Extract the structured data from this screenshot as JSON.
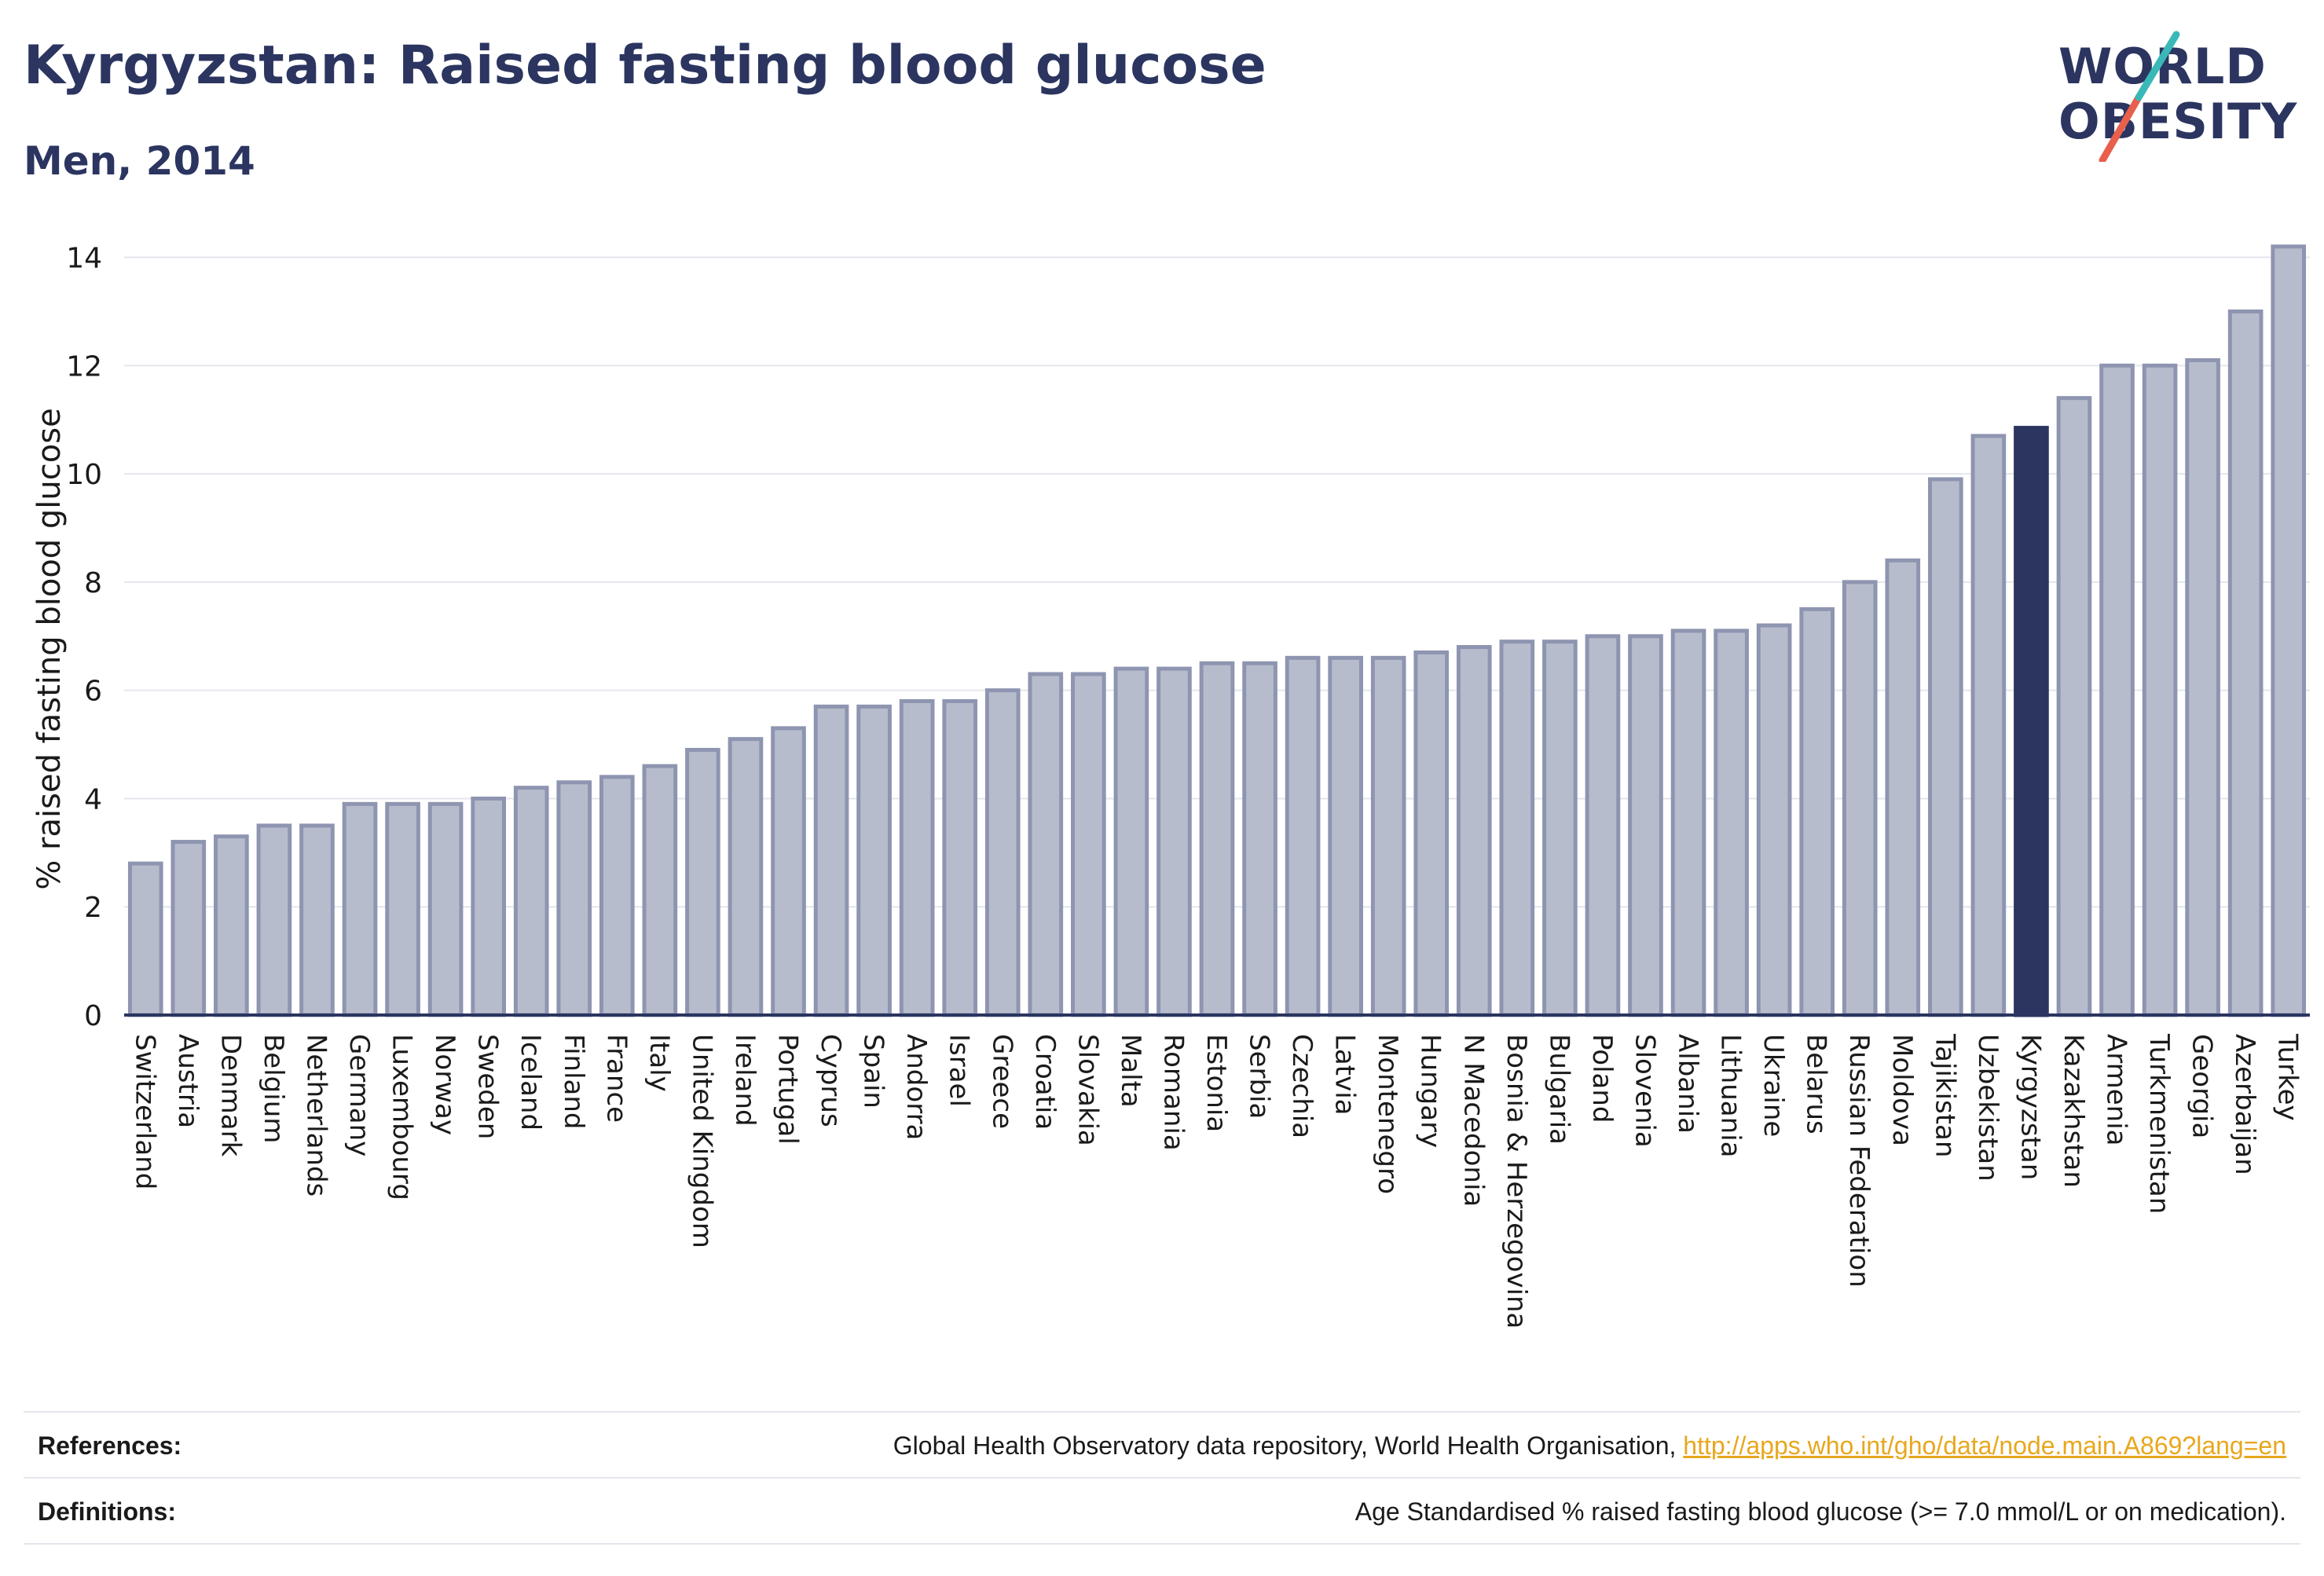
{
  "header": {
    "title": "Kyrgyzstan: Raised fasting blood glucose",
    "subtitle": "Men, 2014"
  },
  "logo": {
    "line1": "WORLD",
    "line2": "OBESITY",
    "colors": [
      "#2b3560",
      "#3ab8b8",
      "#e8604c"
    ]
  },
  "colors": {
    "bar_default": "#b7bccd",
    "bar_default_stroke": "#8e95b0",
    "bar_highlight": "#2b3560",
    "grid": "#e4e6ec",
    "axis": "#2b3560",
    "link": "#e8a71e"
  },
  "chart_data": {
    "type": "bar",
    "ylabel": "% raised fasting blood glucose",
    "xlabel": "",
    "ylim": [
      0,
      14.4
    ],
    "yticks": [
      0,
      2,
      4,
      6,
      8,
      10,
      12,
      14
    ],
    "grid": true,
    "highlight": "Kyrgyzstan",
    "categories": [
      "Switzerland",
      "Austria",
      "Denmark",
      "Belgium",
      "Netherlands",
      "Germany",
      "Luxembourg",
      "Norway",
      "Sweden",
      "Iceland",
      "Finland",
      "France",
      "Italy",
      "United Kingdom",
      "Ireland",
      "Portugal",
      "Cyprus",
      "Spain",
      "Andorra",
      "Israel",
      "Greece",
      "Croatia",
      "Slovakia",
      "Malta",
      "Romania",
      "Estonia",
      "Serbia",
      "Czechia",
      "Latvia",
      "Montenegro",
      "Hungary",
      "N Macedonia",
      "Bosnia & Herzegovina",
      "Bulgaria",
      "Poland",
      "Slovenia",
      "Albania",
      "Lithuania",
      "Ukraine",
      "Belarus",
      "Russian Federation",
      "Moldova",
      "Tajikistan",
      "Uzbekistan",
      "Kyrgyzstan",
      "Kazakhstan",
      "Armenia",
      "Turkmenistan",
      "Georgia",
      "Azerbaijan",
      "Turkey"
    ],
    "values": [
      2.8,
      3.2,
      3.3,
      3.5,
      3.5,
      3.9,
      3.9,
      3.9,
      4.0,
      4.2,
      4.3,
      4.4,
      4.6,
      4.9,
      5.1,
      5.3,
      5.7,
      5.7,
      5.8,
      5.8,
      6.0,
      6.3,
      6.3,
      6.4,
      6.4,
      6.5,
      6.5,
      6.6,
      6.6,
      6.6,
      6.7,
      6.8,
      6.9,
      6.9,
      7.0,
      7.0,
      7.1,
      7.1,
      7.2,
      7.5,
      8.0,
      8.4,
      9.9,
      10.7,
      10.85,
      11.4,
      12.0,
      12.0,
      12.1,
      13.0,
      14.2
    ]
  },
  "footer": {
    "references_label": "References:",
    "references_text": "Global Health Observatory data repository, World Health Organisation, ",
    "references_link": "http://apps.who.int/gho/data/node.main.A869?lang=en",
    "definitions_label": "Definitions:",
    "definitions_text": "Age Standardised % raised fasting blood glucose (>= 7.0 mmol/L or on medication)."
  }
}
